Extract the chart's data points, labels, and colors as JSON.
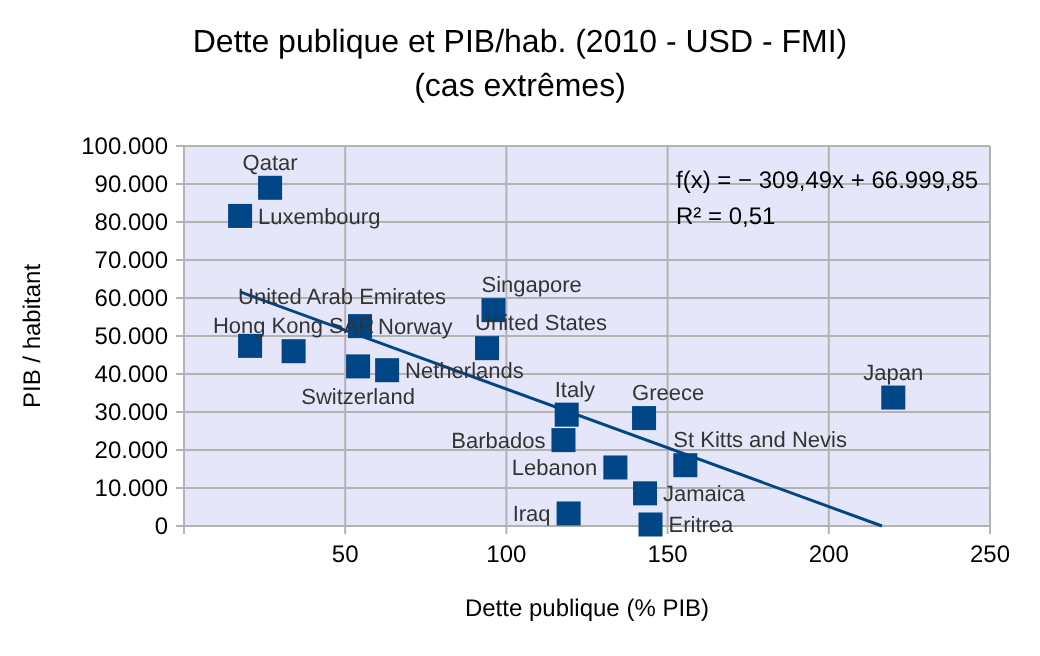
{
  "chart_data": {
    "type": "scatter",
    "title": "Dette publique et PIB/hab. (2010 - USD - FMI)",
    "subtitle": "(cas extrêmes)",
    "xlabel": "Dette publique (% PIB)",
    "ylabel": "PIB / habitant",
    "xlim": [
      0,
      250
    ],
    "xticks": [
      50,
      100,
      150,
      200,
      250
    ],
    "ylim": [
      0,
      100000
    ],
    "yticks": [
      {
        "value": 0,
        "label": "0"
      },
      {
        "value": 10000,
        "label": "10.000"
      },
      {
        "value": 20000,
        "label": "20.000"
      },
      {
        "value": 30000,
        "label": "30.000"
      },
      {
        "value": 40000,
        "label": "40.000"
      },
      {
        "value": 50000,
        "label": "50.000"
      },
      {
        "value": 60000,
        "label": "60.000"
      },
      {
        "value": 70000,
        "label": "70.000"
      },
      {
        "value": 80000,
        "label": "80.000"
      },
      {
        "value": 90000,
        "label": "90.000"
      },
      {
        "value": 100000,
        "label": "100.000"
      }
    ],
    "grid": true,
    "marker": "square",
    "series": [
      {
        "color": "#004586",
        "x": [
          17.4,
          26.7,
          20.5,
          34,
          54.6,
          54,
          63,
          96,
          94,
          118.7,
          117.7,
          133.8,
          142.7,
          155.5,
          143,
          119.3,
          144.7,
          220
        ],
        "values": [
          81600,
          89000,
          47400,
          46000,
          52600,
          42000,
          41000,
          56800,
          46800,
          29300,
          22600,
          15400,
          28400,
          16000,
          8600,
          3300,
          400,
          33800
        ]
      },
      {
        "type": "line",
        "color": "#004586",
        "marker": "none",
        "x": [
          17.4,
          216.5
        ],
        "values": [
          61600,
          0
        ]
      }
    ],
    "annotations": [
      {
        "text": "Luxembourg",
        "x": 17.4,
        "y": 81600
      },
      {
        "text": "Qatar",
        "x": 26.7,
        "y": 89000
      },
      {
        "text": "United Arab Emirates",
        "x": 20.5,
        "y": 47400
      },
      {
        "text": "Hong Kong SAR",
        "x": 34,
        "y": 46000
      },
      {
        "text": "Norway",
        "x": 54.6,
        "y": 52600
      },
      {
        "text": "Switzerland",
        "x": 54,
        "y": 42000
      },
      {
        "text": "Netherlands",
        "x": 63,
        "y": 41000
      },
      {
        "text": "Singapore",
        "x": 96,
        "y": 56800
      },
      {
        "text": "United States",
        "x": 94,
        "y": 46800
      },
      {
        "text": "Italy",
        "x": 118.7,
        "y": 29300
      },
      {
        "text": "Barbados",
        "x": 117.7,
        "y": 22600
      },
      {
        "text": "Lebanon",
        "x": 133.8,
        "y": 15400
      },
      {
        "text": "Greece",
        "x": 142.7,
        "y": 28400
      },
      {
        "text": "St Kitts and Nevis",
        "x": 155.5,
        "y": 16000
      },
      {
        "text": "Jamaica",
        "x": 143,
        "y": 8600
      },
      {
        "text": "Iraq",
        "x": 119.3,
        "y": 3300
      },
      {
        "text": "Eritrea",
        "x": 144.7,
        "y": 400
      },
      {
        "text": "Japan",
        "x": 220,
        "y": 33800
      },
      "f(x) = − 309,49x + 66.999,85",
      "R² = 0,51"
    ]
  }
}
